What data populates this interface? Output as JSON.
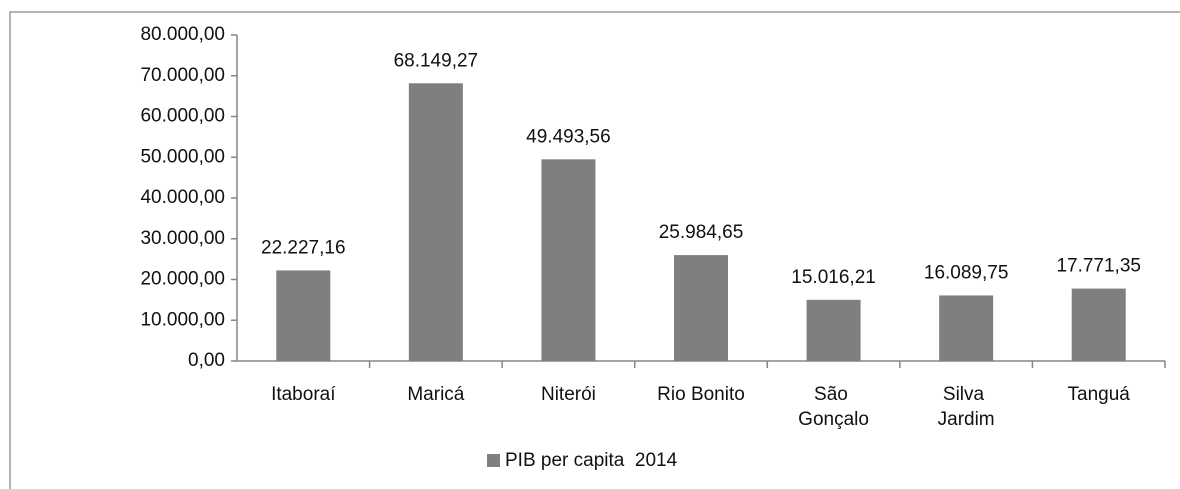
{
  "chart_data": {
    "type": "bar",
    "categories": [
      "Itaboraí",
      "Maricá",
      "Niterói",
      "Rio Bonito",
      "São Gonçalo",
      "Silva Jardim",
      "Tanguá"
    ],
    "series": [
      {
        "name": "PIB per capita  2014",
        "color": "#7f7f7f",
        "values": [
          22227.16,
          68149.27,
          49493.56,
          25984.65,
          15016.21,
          16089.75,
          17771.35
        ],
        "value_labels": [
          "22.227,16",
          "68.149,27",
          "49.493,56",
          "25.984,65",
          "15.016,21",
          "16.089,75",
          "17.771,35"
        ]
      }
    ],
    "ylim": [
      0,
      80000
    ],
    "yticks": [
      {
        "value": 0,
        "label": "0,00"
      },
      {
        "value": 10000,
        "label": "10.000,00"
      },
      {
        "value": 20000,
        "label": "20.000,00"
      },
      {
        "value": 30000,
        "label": "30.000,00"
      },
      {
        "value": 40000,
        "label": "40.000,00"
      },
      {
        "value": 50000,
        "label": "50.000,00"
      },
      {
        "value": 60000,
        "label": "60.000,00"
      },
      {
        "value": 70000,
        "label": "70.000,00"
      },
      {
        "value": 80000,
        "label": "80.000,00"
      }
    ],
    "grid": false,
    "legend": "bottom"
  }
}
